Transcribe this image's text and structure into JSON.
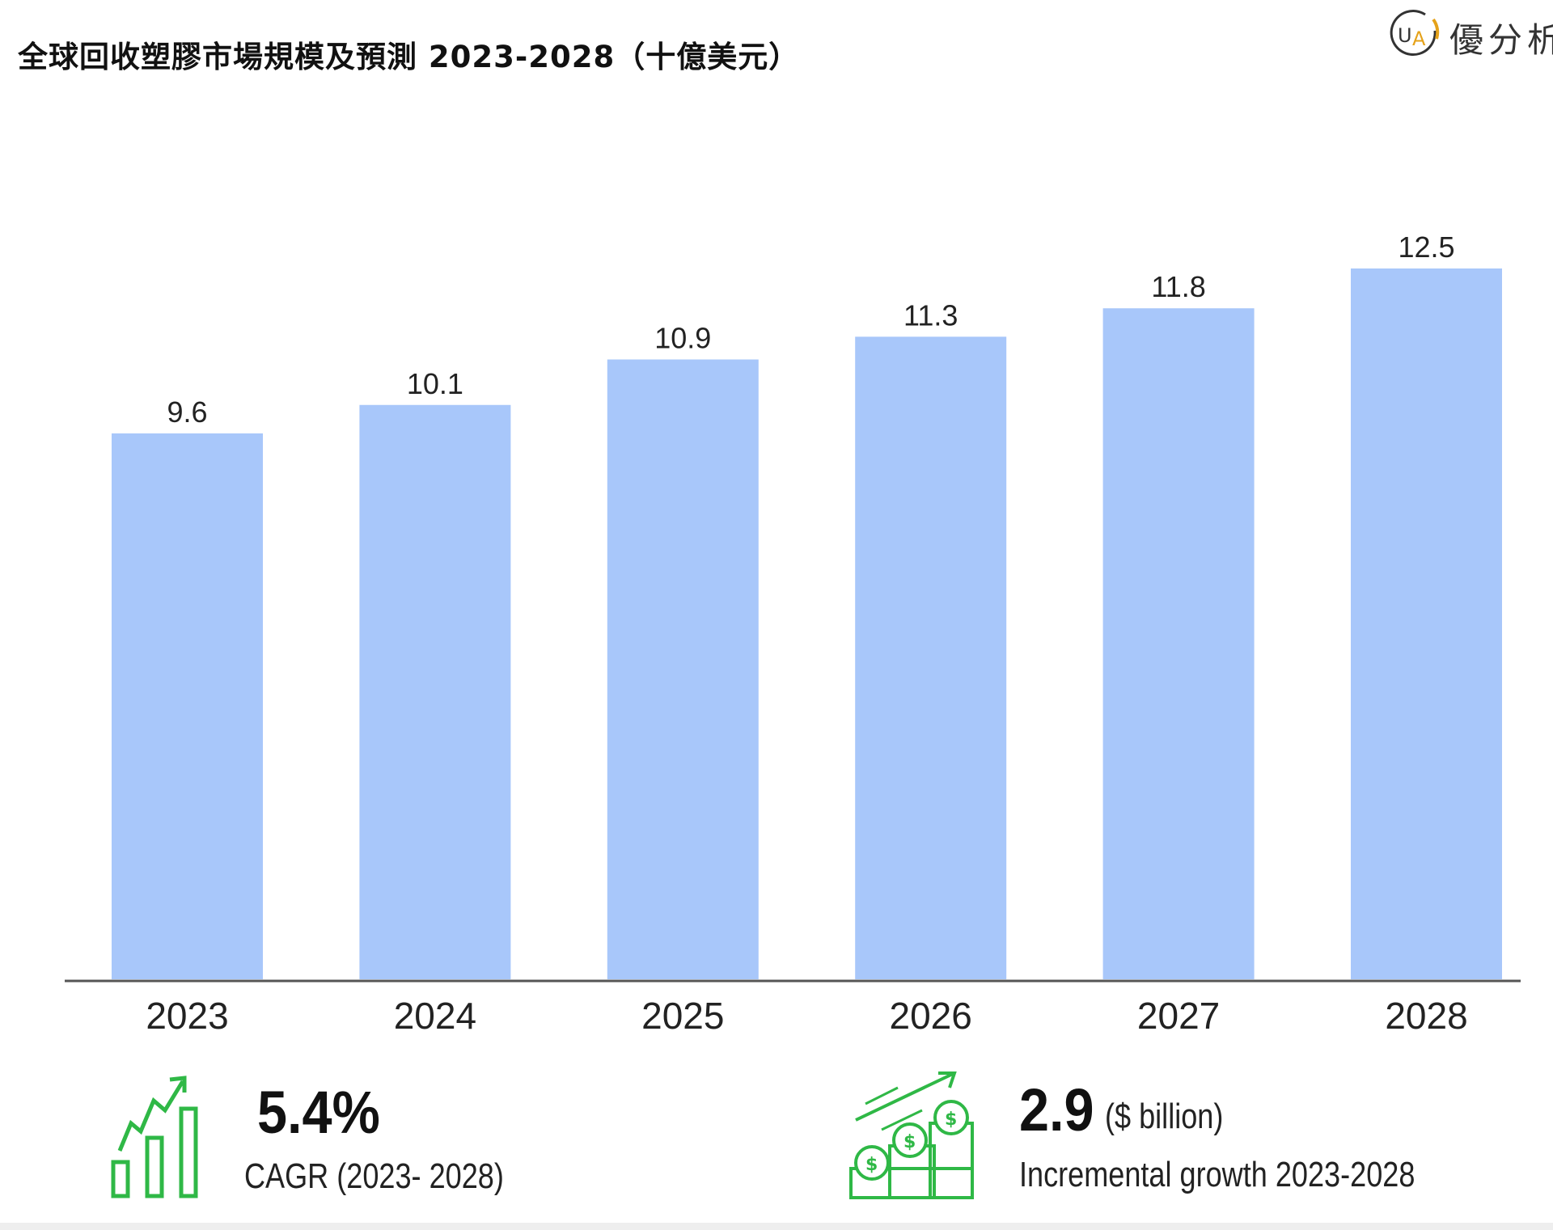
{
  "title": "全球回收塑膠市場規模及預測 2023-2028（十億美元）",
  "logo": {
    "mark": "UA",
    "text": "優分析",
    "accent": "#e5a21a"
  },
  "colors": {
    "bar": "#a8c7fa",
    "axis": "#555555",
    "icon_green": "#2fb846"
  },
  "chart_data": {
    "type": "bar",
    "title": "全球回收塑膠市場規模及預測 2023-2028（十億美元）",
    "categories": [
      "2023",
      "2024",
      "2025",
      "2026",
      "2027",
      "2028"
    ],
    "values": [
      9.6,
      10.1,
      10.9,
      11.3,
      11.8,
      12.5
    ],
    "data_labels": [
      "9.6",
      "10.1",
      "10.9",
      "11.3",
      "11.8",
      "12.5"
    ],
    "ylim": [
      0,
      12.5
    ],
    "grid": false,
    "legend": "none"
  },
  "stats": {
    "cagr": {
      "value": "5.4%",
      "caption": "CAGR (2023- 2028)",
      "icon": "growth-chart-icon"
    },
    "growth": {
      "value": "2.9",
      "unit": "($ billion)",
      "caption": "Incremental growth 2023-2028",
      "icon": "money-growth-icon"
    }
  }
}
